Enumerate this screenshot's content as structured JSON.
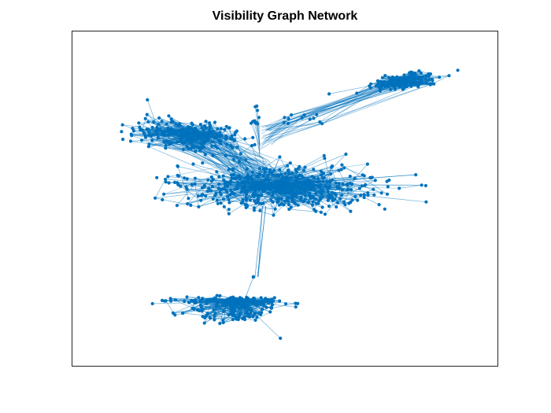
{
  "chart_data": {
    "type": "network",
    "title": "Visibility Graph Network",
    "xlabel": "",
    "ylabel": "",
    "grid": false,
    "axis_ticks": false,
    "clusters": [
      {
        "name": "upper-right-cluster",
        "hub": [
          505,
          108
        ]
      },
      {
        "name": "upper-left-cluster",
        "hub": [
          270,
          172
        ]
      },
      {
        "name": "central-cluster",
        "hub": [
          340,
          236
        ]
      },
      {
        "name": "bottom-cluster",
        "hub": [
          310,
          383
        ]
      }
    ]
  },
  "colors": {
    "node": "#0072BD",
    "edge": "#0072BD",
    "axes_border": "#262626",
    "title": "#000000",
    "background": "#ffffff"
  }
}
